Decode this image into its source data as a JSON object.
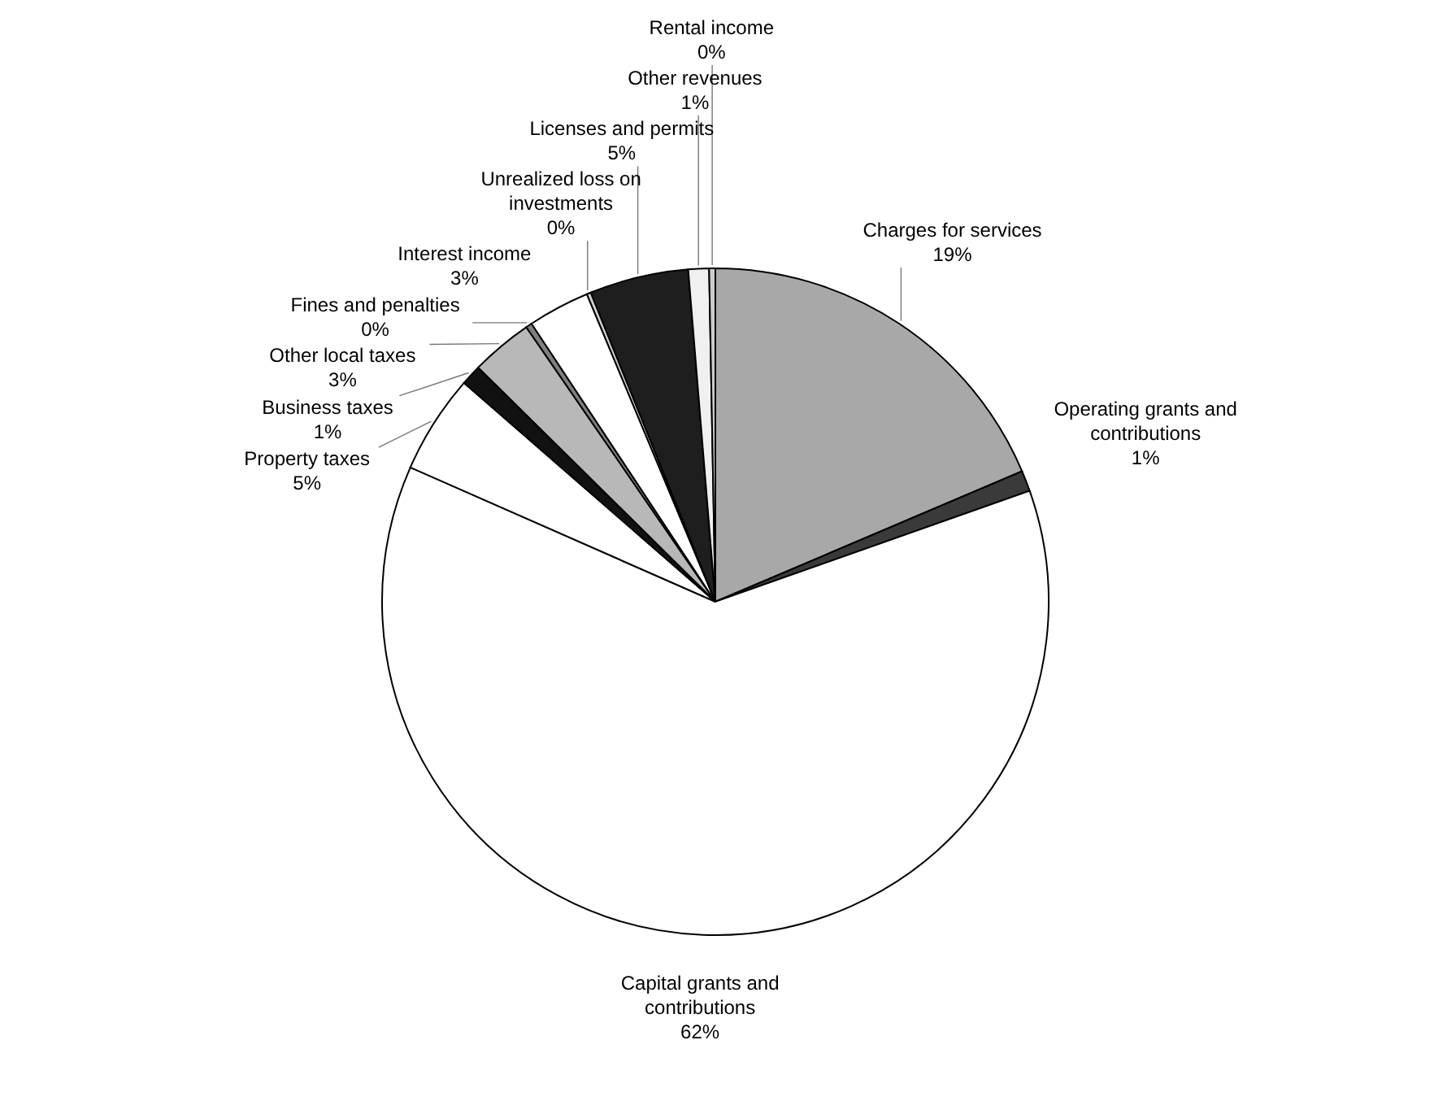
{
  "chart_data": {
    "type": "pie",
    "categories": [
      "Charges for services",
      "Operating grants and contributions",
      "Capital grants and contributions",
      "Property taxes",
      "Business taxes",
      "Other local taxes",
      "Fines and penalties",
      "Interest income",
      "Unrealized loss on investments",
      "Licenses and permits",
      "Other revenues",
      "Rental income"
    ],
    "values": [
      18.6,
      1,
      62,
      4.8,
      1,
      3,
      0.3,
      3,
      0.2,
      4.8,
      1,
      0.3
    ],
    "value_labels": [
      "19%",
      "1%",
      "62%",
      "5%",
      "1%",
      "3%",
      "0%",
      "3%",
      "0%",
      "5%",
      "1%",
      "0%"
    ],
    "colors": [
      "#a8a8a8",
      "#3a3a3a",
      "#ffffff",
      "#ffffff",
      "#111111",
      "#b8b8b8",
      "#808080",
      "#ffffff",
      "#d0d0d0",
      "#1e1e1e",
      "#f0f0f0",
      "#cccccc"
    ]
  }
}
